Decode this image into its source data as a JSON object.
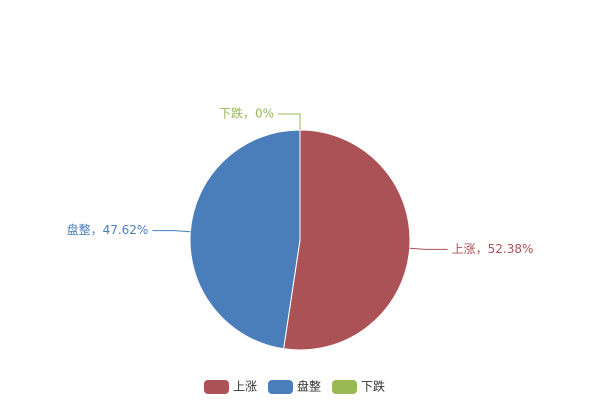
{
  "chart_data": {
    "type": "pie",
    "categories": [
      "上涨",
      "盘整",
      "下跌"
    ],
    "values": [
      52.38,
      47.62,
      0
    ],
    "value_labels": [
      "上涨，52.38%",
      "盘整，47.62%",
      "下跌，0%"
    ],
    "colors": [
      "#ab5256",
      "#4a7ebb",
      "#98b954"
    ],
    "legend": "bottom"
  }
}
